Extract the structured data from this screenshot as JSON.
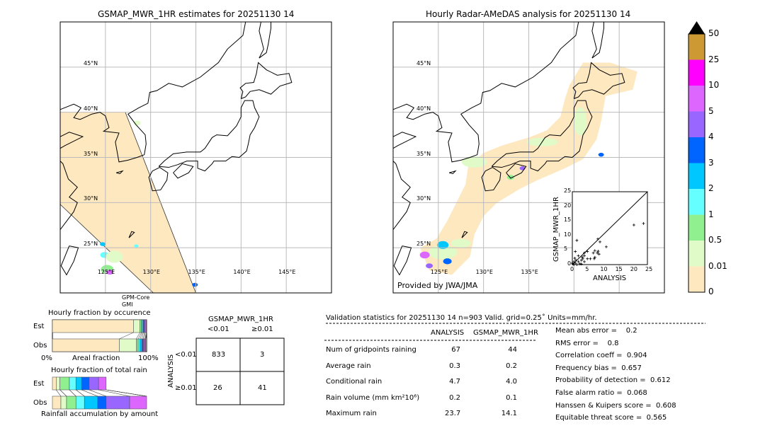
{
  "left_map": {
    "title": "GSMAP_MWR_1HR estimates for 20251130 14",
    "sensor_label_1": "GPM-Core",
    "sensor_label_2": "GMI",
    "lat_labels": [
      "45°N",
      "40°N",
      "35°N",
      "30°N",
      "25°N"
    ],
    "lon_labels": [
      "125°E",
      "130°E",
      "135°E",
      "140°E",
      "145°E"
    ]
  },
  "right_map": {
    "title": "Hourly Radar-AMeDAS analysis for 20251130 14",
    "credit": "Provided by JWA/JMA",
    "lat_labels": [
      "45°N",
      "40°N",
      "35°N",
      "30°N",
      "25°N"
    ],
    "lon_labels": [
      "125°E",
      "130°E",
      "135°E"
    ]
  },
  "colorbar": {
    "labels": [
      "50",
      "25",
      "10",
      "5",
      "4",
      "3",
      "2",
      "1",
      "0.5",
      "0.01",
      "0"
    ],
    "colors": [
      "#cc9933",
      "#ff00ff",
      "#dd66ff",
      "#9966ff",
      "#0064ff",
      "#00c8ff",
      "#66ffff",
      "#90f090",
      "#e0fbc8",
      "#fee8c0"
    ],
    "extend_color": "#000000"
  },
  "chart_data": [
    {
      "type": "scatter",
      "xlabel": "ANALYSIS",
      "ylabel": "GSMAP_MWR_1HR",
      "xlim": [
        0,
        25
      ],
      "ylim": [
        0,
        25
      ],
      "xticks": [
        "0",
        "5",
        "10",
        "15",
        "20",
        "25"
      ],
      "yticks": [
        "0",
        "5",
        "10",
        "15",
        "20",
        "25"
      ],
      "points": [
        [
          23.7,
          14.1
        ],
        [
          20.5,
          13.6
        ],
        [
          1.5,
          8.3
        ],
        [
          8.5,
          8.8
        ],
        [
          9.2,
          7.8
        ],
        [
          11.3,
          6.1
        ],
        [
          7.5,
          4.8
        ],
        [
          8.6,
          4.6
        ],
        [
          8.3,
          4.0
        ],
        [
          7,
          4
        ],
        [
          7.5,
          2.5
        ],
        [
          7.3,
          2
        ],
        [
          8.9,
          3.6
        ],
        [
          5,
          4.5
        ],
        [
          4,
          3
        ],
        [
          3.5,
          2
        ],
        [
          2,
          3
        ],
        [
          1,
          4.5
        ],
        [
          0.5,
          1
        ],
        [
          1,
          0.5
        ],
        [
          0.2,
          0.2
        ],
        [
          2,
          1
        ],
        [
          3,
          1.5
        ],
        [
          4,
          1
        ],
        [
          5,
          2
        ],
        [
          3,
          0.2
        ],
        [
          1.5,
          0
        ],
        [
          0,
          0.5
        ],
        [
          0.5,
          0
        ],
        [
          2.5,
          0.3
        ],
        [
          6,
          2
        ],
        [
          4,
          4
        ],
        [
          1.2,
          1.5
        ],
        [
          0.8,
          2.2
        ],
        [
          3.3,
          2.6
        ]
      ]
    },
    {
      "type": "bar",
      "title": "Hourly fraction by occurence",
      "categories": [
        "Est",
        "Obs"
      ],
      "xlabel": "Areal fraction",
      "xtick_left": "0%",
      "xtick_right": "100%",
      "series": {
        "Est": [
          0.86,
          0.07,
          0.015,
          0.01,
          0.01,
          0.01,
          0.01,
          0.01,
          0.005,
          0.0
        ],
        "Obs": [
          0.71,
          0.18,
          0.02,
          0.02,
          0.02,
          0.015,
          0.01,
          0.01,
          0.005,
          0.0
        ]
      }
    },
    {
      "type": "bar",
      "title": "Hourly fraction of total rain",
      "categories": [
        "Est",
        "Obs"
      ],
      "xlabel": "Rainfall accumulation by amount",
      "series": {
        "Est": [
          0.04,
          0.04,
          0.1,
          0.07,
          0.06,
          0.08,
          0.1,
          0.08,
          0,
          0
        ],
        "Obs": [
          0.09,
          0.06,
          0.1,
          0.09,
          0.14,
          0.09,
          0.25,
          0.18,
          0,
          0
        ]
      }
    }
  ],
  "contingency": {
    "title": "GSMAP_MWR_1HR",
    "col_labels": [
      "<0.01",
      "≥0.01"
    ],
    "row_title": "ANALYSIS",
    "row_labels": [
      "<0.01",
      "≥0.01"
    ],
    "cells": [
      [
        "833",
        "3"
      ],
      [
        "26",
        "41"
      ]
    ]
  },
  "stats": {
    "header": "Validation statistics for 20251130 14  n=903 Valid. grid=0.25˚ Units=mm/hr.",
    "col_headers": [
      "ANALYSIS",
      "GSMAP_MWR_1HR"
    ],
    "rows": [
      {
        "label": "Num of gridpoints raining",
        "a": "67",
        "g": "44"
      },
      {
        "label": "Average rain",
        "a": "0.3",
        "g": "0.2"
      },
      {
        "label": "Conditional rain",
        "a": "4.7",
        "g": "4.0"
      },
      {
        "label": "Rain volume (mm km²10⁶)",
        "a": "0.2",
        "g": "0.1"
      },
      {
        "label": "Maximum rain",
        "a": "23.7",
        "g": "14.1"
      }
    ],
    "scores": [
      "Mean abs error =    0.2",
      "RMS error =    0.8",
      "Correlation coeff =  0.904",
      "Frequency bias =  0.657",
      "Probability of detection =  0.612",
      "False alarm ratio =  0.068",
      "Hanssen & Kuipers score =  0.608",
      "Equitable threat score =  0.565"
    ]
  }
}
